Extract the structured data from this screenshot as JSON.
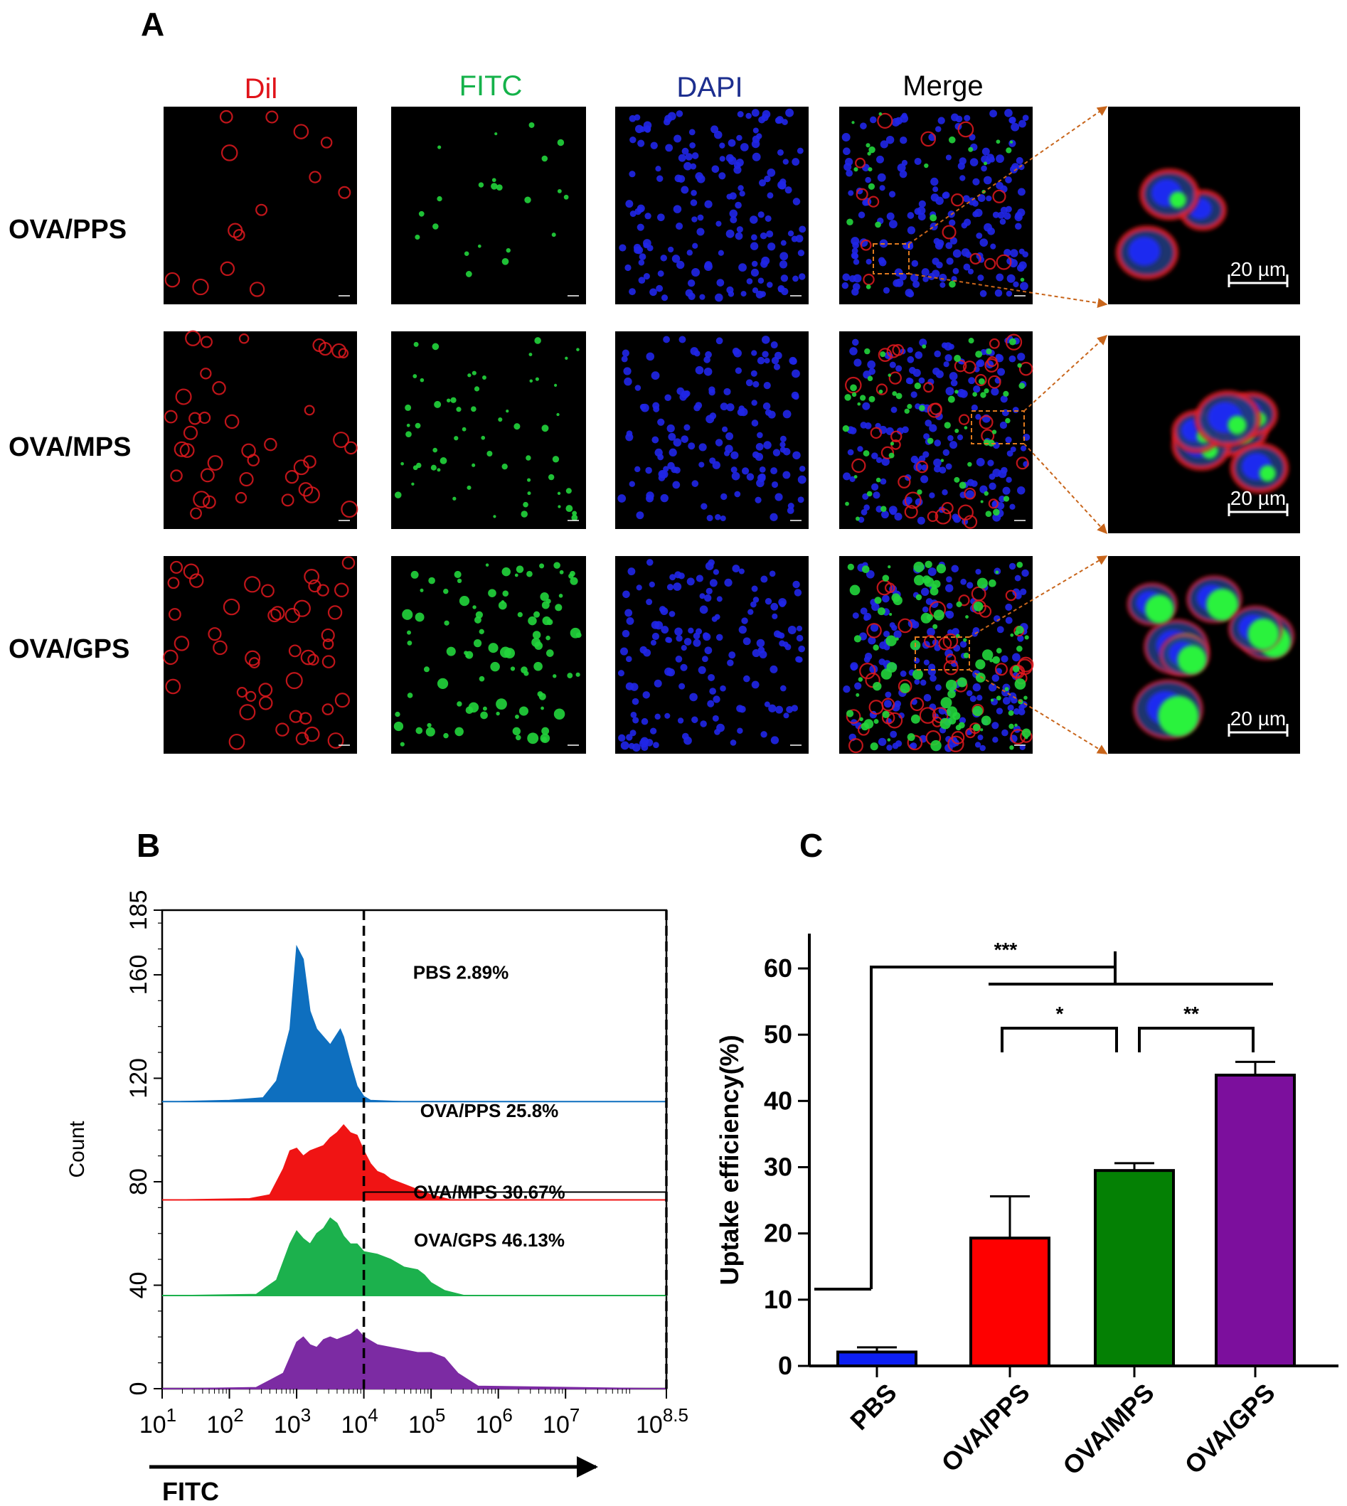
{
  "panels": {
    "a": "A",
    "b": "B",
    "c": "C"
  },
  "microscopy": {
    "channels": [
      {
        "label": "Dil",
        "color": "#e0131a"
      },
      {
        "label": "FITC",
        "color": "#15b24a"
      },
      {
        "label": "DAPI",
        "color": "#1d2f8f"
      },
      {
        "label": "Merge",
        "color": "#000000"
      }
    ],
    "rows": [
      "OVA/PPS",
      "OVA/MPS",
      "OVA/GPS"
    ],
    "scale_bar": "20 µm"
  },
  "chart_data": [
    {
      "type": "area",
      "panel": "B",
      "xlabel": "FITC",
      "ylabel": "Count",
      "x_scale": "log10",
      "x_ticks": [
        "10",
        "10",
        "10",
        "10",
        "10",
        "10",
        "10",
        "10"
      ],
      "x_tick_exponents": [
        "1",
        "2",
        "3",
        "4",
        "5",
        "6",
        "7",
        "8.5"
      ],
      "y_ticks": [
        "0",
        "40",
        "80",
        "120",
        "160",
        "185"
      ],
      "ylim": [
        0,
        185
      ],
      "xlim": [
        1,
        8.5
      ],
      "gate_x": [
        4,
        8.5
      ],
      "series": [
        {
          "name": "PBS",
          "percent": "2.89%",
          "color": "#0e6fbf",
          "offset": 111,
          "x": [
            1.2,
            2.0,
            2.5,
            2.7,
            2.9,
            3.0,
            3.1,
            3.2,
            3.3,
            3.4,
            3.5,
            3.6,
            3.65,
            3.7,
            3.8,
            3.9,
            4.0,
            4.1,
            4.3,
            4.6,
            5.5,
            8.5
          ],
          "y": [
            0,
            0.5,
            1.5,
            8,
            28,
            60,
            55,
            35,
            28,
            25,
            22,
            26,
            28,
            25,
            15,
            6,
            2,
            0.5,
            0.3,
            0,
            0,
            0
          ]
        },
        {
          "name": "OVA/PPS",
          "percent": "25.8%",
          "color": "#f01414",
          "offset": 73,
          "x": [
            1.2,
            2.3,
            2.6,
            2.8,
            2.9,
            3.0,
            3.1,
            3.2,
            3.3,
            3.4,
            3.5,
            3.6,
            3.7,
            3.8,
            3.9,
            4.0,
            4.1,
            4.2,
            4.3,
            4.4,
            4.6,
            4.8,
            5.0,
            5.3,
            8.5
          ],
          "y": [
            0,
            0.5,
            2,
            12,
            19,
            20,
            17,
            19,
            20,
            21,
            24,
            26,
            29,
            26,
            25,
            19,
            14,
            11,
            10,
            8,
            6,
            4,
            2,
            0,
            0
          ]
        },
        {
          "name": "OVA/MPS",
          "percent": "30.67%",
          "color": "#1cb14d",
          "offset": 36,
          "x": [
            1.2,
            2.4,
            2.7,
            2.9,
            3.0,
            3.1,
            3.2,
            3.3,
            3.4,
            3.5,
            3.6,
            3.7,
            3.8,
            3.9,
            4.0,
            4.2,
            4.4,
            4.6,
            4.8,
            4.9,
            5.0,
            5.2,
            5.5,
            8.5
          ],
          "y": [
            0,
            0.5,
            6,
            20,
            25,
            22,
            20,
            24,
            26,
            30,
            28,
            23,
            20,
            20,
            17,
            16,
            14,
            11,
            10,
            8,
            5,
            2,
            0,
            0
          ]
        },
        {
          "name": "OVA/GPS",
          "percent": "46.13%",
          "color": "#7c2ba3",
          "offset": 0,
          "x": [
            1.2,
            2.4,
            2.8,
            3.0,
            3.1,
            3.2,
            3.3,
            3.4,
            3.5,
            3.6,
            3.7,
            3.8,
            3.9,
            4.0,
            4.2,
            4.4,
            4.6,
            4.8,
            5.0,
            5.2,
            5.4,
            5.7,
            8.5
          ],
          "y": [
            0,
            0.5,
            6,
            18,
            20,
            17,
            16,
            19,
            20,
            19,
            20,
            21,
            23,
            20,
            17,
            16,
            15,
            14,
            14,
            12,
            6,
            1,
            0
          ]
        }
      ]
    },
    {
      "type": "bar",
      "panel": "C",
      "ylabel": "Uptake efficiency(%)",
      "categories": [
        "PBS",
        "OVA/PPS",
        "OVA/MPS",
        "OVA/GPS"
      ],
      "values": [
        2.1,
        19.3,
        29.5,
        43.9
      ],
      "errors": [
        0.7,
        6.3,
        1.1,
        2.0
      ],
      "colors": [
        "#0d1ff2",
        "#fe0000",
        "#048004",
        "#7c0f9d"
      ],
      "ylim": [
        0,
        65
      ],
      "y_ticks": [
        "0",
        "10",
        "20",
        "30",
        "40",
        "50",
        "60"
      ],
      "significance": [
        "***",
        "*",
        "**"
      ]
    }
  ]
}
